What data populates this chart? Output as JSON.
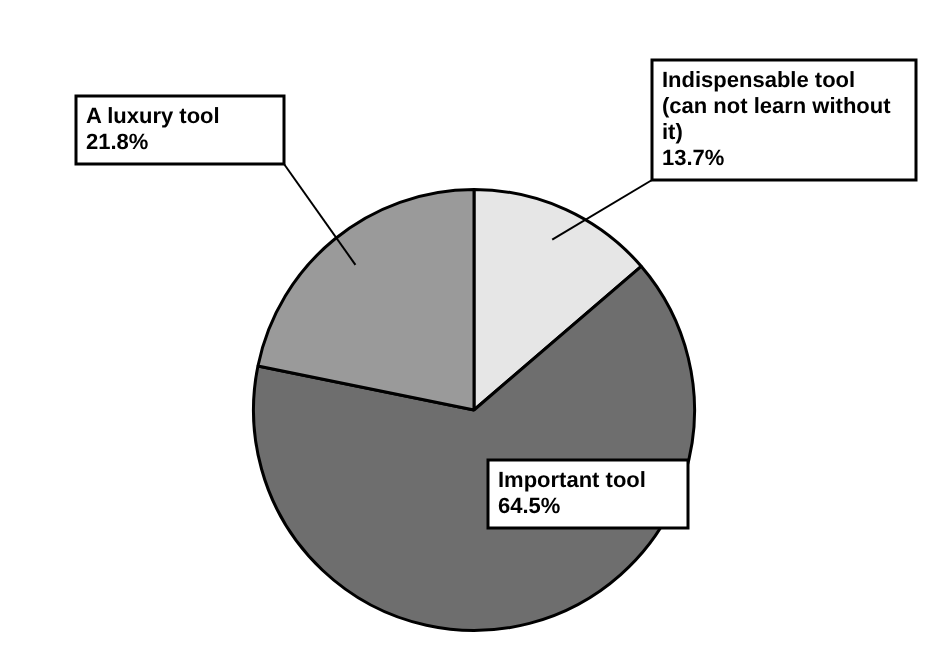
{
  "chart_data": {
    "type": "pie",
    "categories": [
      "Indispensable tool (can not learn without it)",
      "Important tool",
      "A luxury tool"
    ],
    "values": [
      13.7,
      64.5,
      21.8
    ],
    "colors": [
      "#e6e6e6",
      "#6e6e6e",
      "#9a9a9a"
    ],
    "value_labels": [
      "13.7%",
      "64.5%",
      "21.8%"
    ],
    "legend": false
  }
}
